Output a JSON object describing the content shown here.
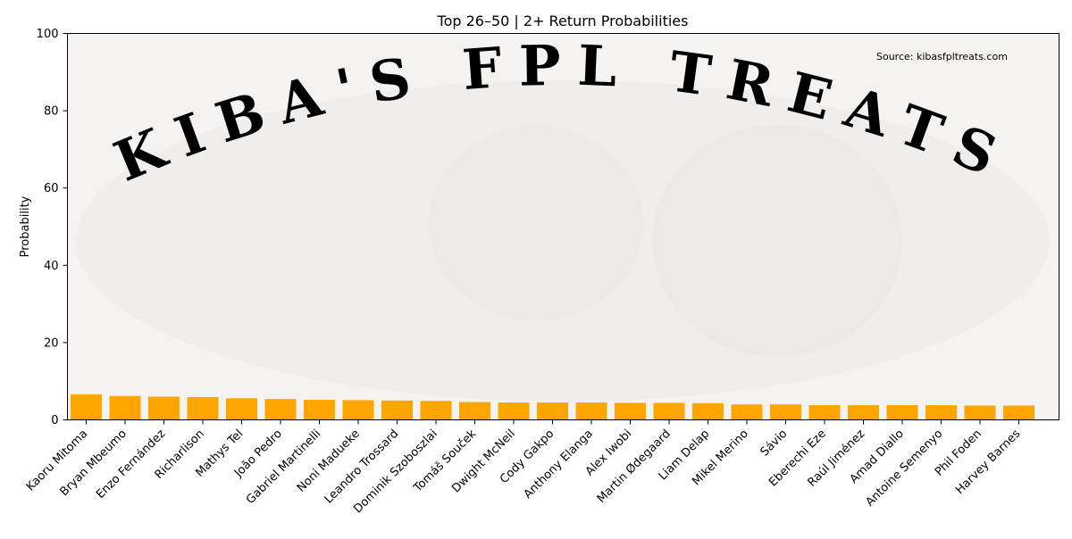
{
  "chart_data": {
    "type": "bar",
    "title": "Top 26–50 | 2+ Return Probabilities",
    "xlabel": "",
    "ylabel": "Probability",
    "ylim": [
      0,
      100
    ],
    "yticks": [
      0,
      20,
      40,
      60,
      80,
      100
    ],
    "grid": false,
    "bar_color": "#FFA500",
    "annotation": "Source: kibasfpltreats.com",
    "watermark": "KIBA'S FPL TREATS",
    "categories": [
      "Kaoru Mitoma",
      "Bryan Mbeumo",
      "Enzo Fernández",
      "Richarlison",
      "Mathys Tel",
      "João Pedro",
      "Gabriel Martinelli",
      "Noni Madueke",
      "Leandro Trossard",
      "Dominik Szoboszlai",
      "Tomáš Souček",
      "Dwight McNeil",
      "Cody Gakpo",
      "Anthony Elanga",
      "Alex Iwobi",
      "Martin Ødegaard",
      "Liam Delap",
      "Mikel Merino",
      "Sávio",
      "Eberechi Eze",
      "Raúl Jiménez",
      "Amad Diallo",
      "Antoine Semenyo",
      "Phil Foden",
      "Harvey Barnes"
    ],
    "values": [
      6.6,
      6.2,
      6.0,
      5.9,
      5.6,
      5.4,
      5.2,
      5.1,
      5.0,
      4.9,
      4.6,
      4.5,
      4.5,
      4.5,
      4.4,
      4.4,
      4.3,
      4.0,
      4.0,
      3.8,
      3.8,
      3.8,
      3.8,
      3.7,
      3.7
    ]
  }
}
